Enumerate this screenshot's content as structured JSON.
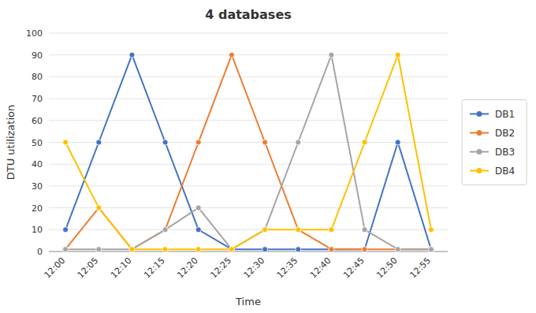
{
  "chart_data": {
    "type": "line",
    "title": "4 databases",
    "x_label": "Time",
    "y_label": "DTU utilization",
    "categories": [
      "12:00",
      "12:05",
      "12:10",
      "12:15",
      "12:20",
      "12:25",
      "12:30",
      "12:35",
      "12:40",
      "12:45",
      "12:50",
      "12:55"
    ],
    "series": [
      {
        "name": "DB1",
        "color": "#4472C4",
        "values": [
          10,
          50,
          90,
          50,
          10,
          1,
          1,
          1,
          1,
          1,
          50,
          1
        ]
      },
      {
        "name": "DB2",
        "color": "#ED7D31",
        "values": [
          1,
          20,
          1,
          10,
          50,
          90,
          50,
          10,
          1,
          1,
          1,
          1
        ]
      },
      {
        "name": "DB3",
        "color": "#A5A5A5",
        "values": [
          1,
          1,
          1,
          10,
          20,
          1,
          10,
          50,
          90,
          10,
          1,
          1
        ]
      },
      {
        "name": "DB4",
        "color": "#FFC000",
        "values": [
          50,
          20,
          1,
          1,
          1,
          1,
          10,
          10,
          10,
          50,
          90,
          10
        ]
      }
    ],
    "ylim": [
      0,
      100
    ],
    "yticks": [
      0,
      10,
      20,
      30,
      40,
      50,
      60,
      70,
      80,
      90,
      100
    ],
    "grid": true,
    "legend": "right",
    "marker": "circle"
  }
}
